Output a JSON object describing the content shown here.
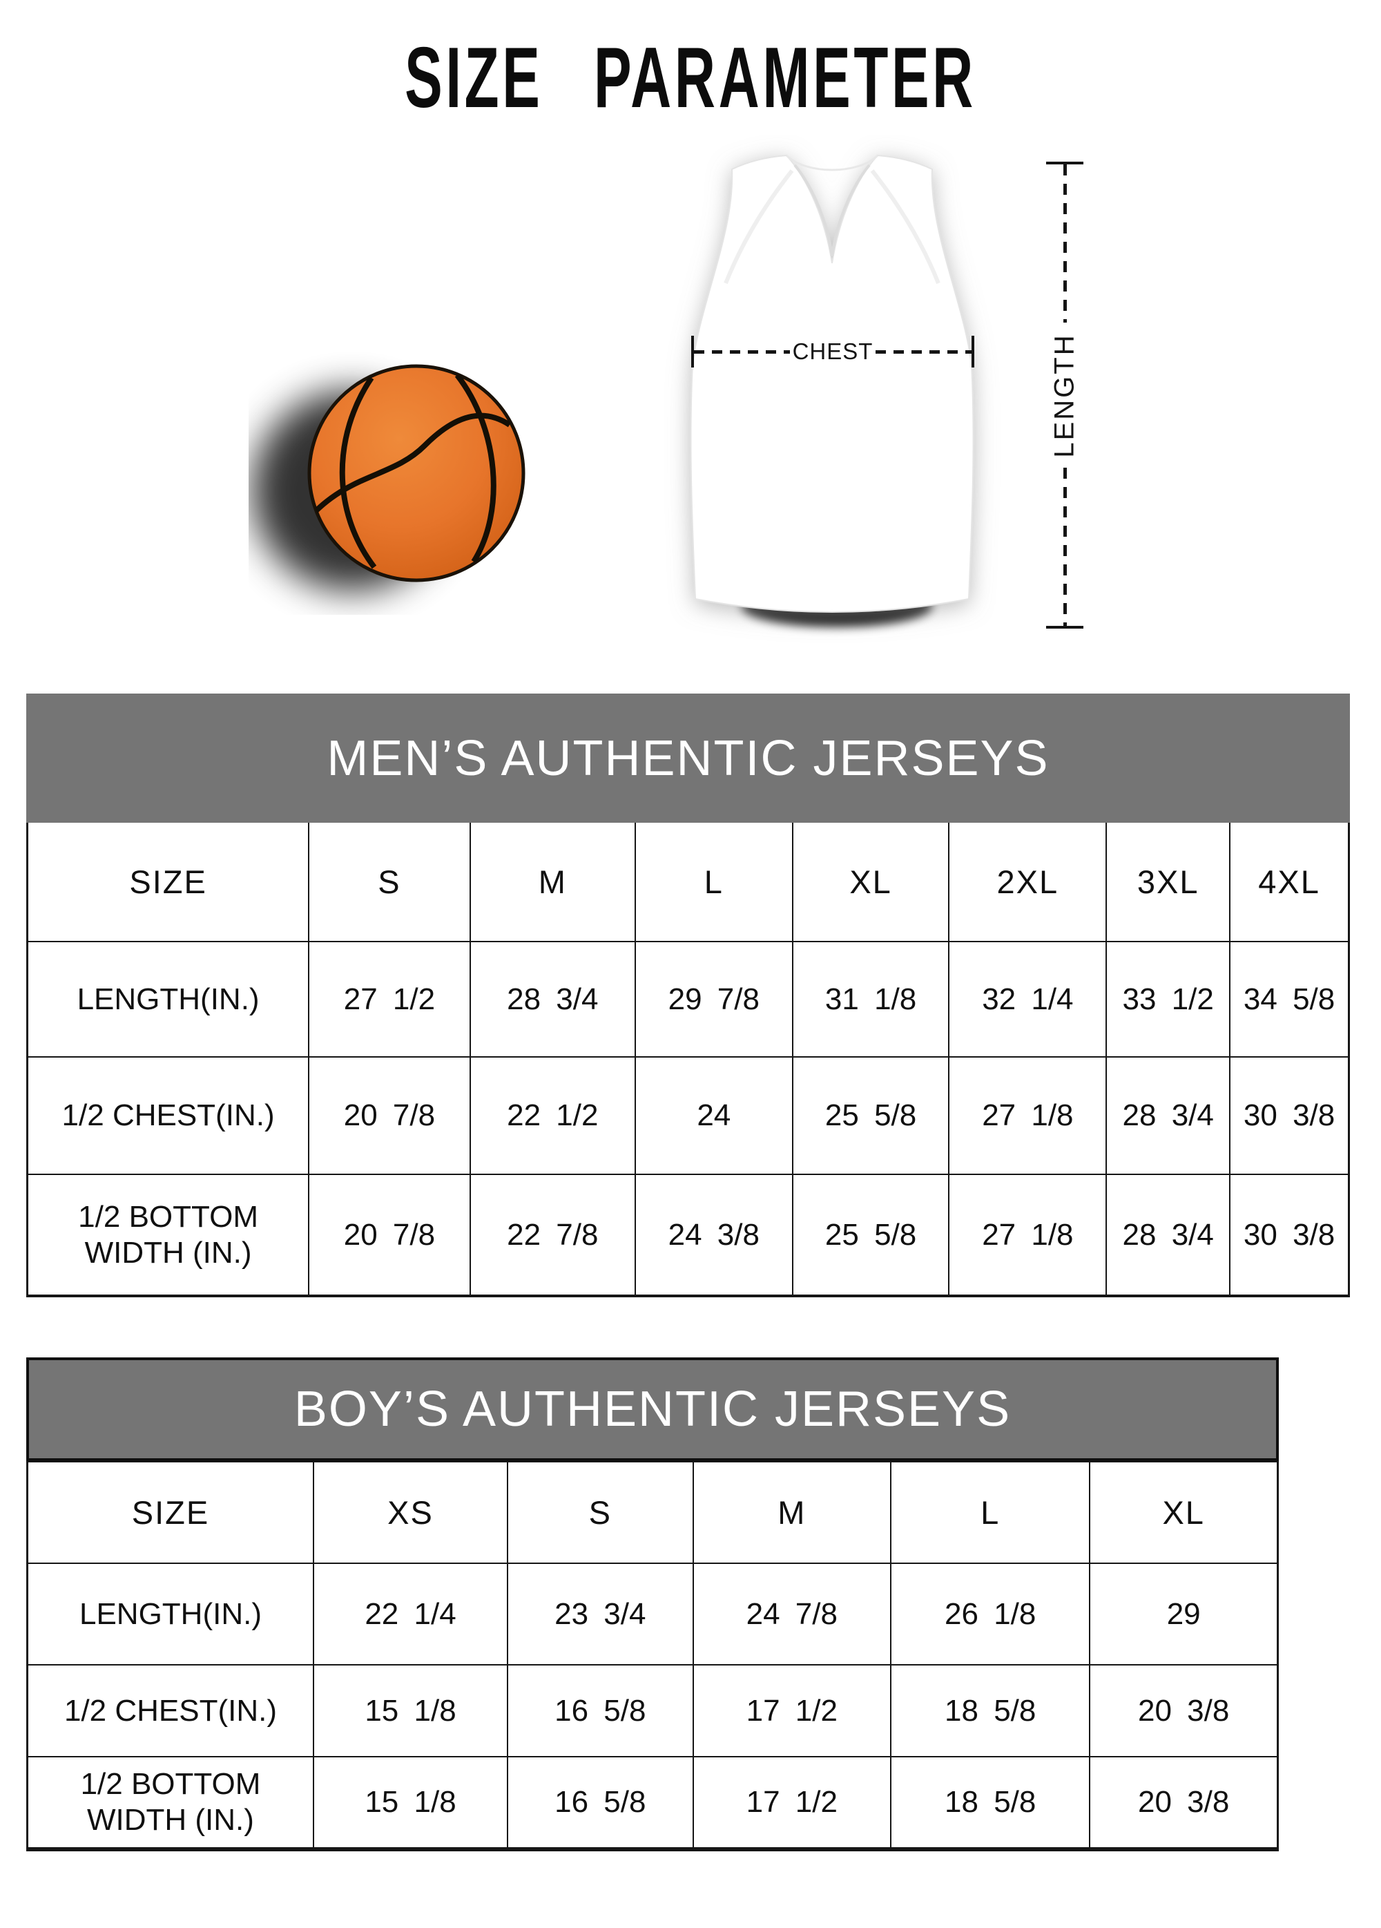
{
  "page": {
    "title": "SIZE PARAMETER"
  },
  "diagram": {
    "chest_label": "CHEST",
    "length_label": "LENGTH"
  },
  "colors": {
    "banner_background": "#757575",
    "banner_text": "#ffffff",
    "table_border": "#161616",
    "text_color": "#111111",
    "basketball_orange": "#e7752b",
    "basketball_seam": "#140f06"
  },
  "chart_data": [
    {
      "type": "table",
      "title": "MEN’S AUTHENTIC JERSEYS",
      "columns": [
        "SIZE",
        "S",
        "M",
        "L",
        "XL",
        "2XL",
        "3XL",
        "4XL"
      ],
      "rows": [
        {
          "label": "LENGTH(IN.)",
          "values": [
            "27 1/2",
            "28 3/4",
            "29 7/8",
            "31 1/8",
            "32 1/4",
            "33 1/2",
            "34 5/8"
          ]
        },
        {
          "label": "1/2 CHEST(IN.)",
          "values": [
            "20 7/8",
            "22 1/2",
            "24",
            "25 5/8",
            "27 1/8",
            "28 3/4",
            "30 3/8"
          ]
        },
        {
          "label": "1/2 BOTTOM WIDTH (IN.)",
          "values": [
            "20 7/8",
            "22 7/8",
            "24 3/8",
            "25 5/8",
            "27 1/8",
            "28 3/4",
            "30 3/8"
          ]
        }
      ]
    },
    {
      "type": "table",
      "title": "BOY’S AUTHENTIC JERSEYS",
      "columns": [
        "SIZE",
        "XS",
        "S",
        "M",
        "L",
        "XL"
      ],
      "rows": [
        {
          "label": "LENGTH(IN.)",
          "values": [
            "22 1/4",
            "23 3/4",
            "24 7/8",
            "26 1/8",
            "29"
          ]
        },
        {
          "label": "1/2 CHEST(IN.)",
          "values": [
            "15 1/8",
            "16 5/8",
            "17 1/2",
            "18 5/8",
            "20 3/8"
          ]
        },
        {
          "label": "1/2 BOTTOM WIDTH (IN.)",
          "values": [
            "15 1/8",
            "16 5/8",
            "17 1/2",
            "18 5/8",
            "20 3/8"
          ]
        }
      ]
    }
  ]
}
